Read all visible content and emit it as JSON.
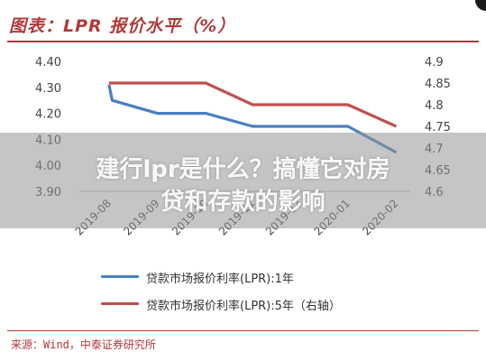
{
  "title": "图表：LPR 报价水平（%）",
  "overlay": {
    "line1": "建行lpr是什么？搞懂它对房",
    "line2": "贷和存款的影响"
  },
  "source": "来源：Wind，中泰证券研究所",
  "colors": {
    "accent": "#b03a3a",
    "series_1y": "#4a7fc1",
    "series_5y": "#c0504d"
  },
  "chart_data": {
    "type": "line",
    "title": "图表：LPR 报价水平（%）",
    "x": [
      "2019-08-20",
      "2019-09-20",
      "2019-10-21",
      "2019-11-20",
      "2019-12-20",
      "2020-01-20",
      "2020-02-20"
    ],
    "x_ticks": [
      "2019-08",
      "2019-09",
      "2019-10",
      "2019-11",
      "2019-12",
      "2020-01",
      "2020-02"
    ],
    "xlim": [
      "2019-08-01",
      "2020-02-29"
    ],
    "y_left": {
      "ticks": [
        "3.90",
        "4.00",
        "4.10",
        "4.20",
        "4.30",
        "4.40"
      ],
      "lim": [
        3.9,
        4.4
      ]
    },
    "y_right": {
      "ticks": [
        "4.6",
        "4.65",
        "4.7",
        "4.75",
        "4.8",
        "4.85",
        "4.9"
      ],
      "lim": [
        4.6,
        4.9
      ]
    },
    "series": [
      {
        "name": "贷款市场报价利率(LPR):1年",
        "axis": "left",
        "x": [
          "2019-08-20",
          "2019-08-22",
          "2019-09-20",
          "2019-10-21",
          "2019-11-20",
          "2019-12-20",
          "2020-01-20",
          "2020-02-20"
        ],
        "values": [
          4.31,
          4.25,
          4.2,
          4.2,
          4.15,
          4.15,
          4.15,
          4.05
        ]
      },
      {
        "name": "贷款市场报价利率(LPR):5年（右轴）",
        "axis": "right",
        "x": [
          "2019-08-20",
          "2019-09-20",
          "2019-10-21",
          "2019-11-20",
          "2019-12-20",
          "2020-01-20",
          "2020-02-20"
        ],
        "values": [
          4.85,
          4.85,
          4.85,
          4.8,
          4.8,
          4.8,
          4.75
        ]
      }
    ],
    "grid": false,
    "legend": "bottom"
  }
}
